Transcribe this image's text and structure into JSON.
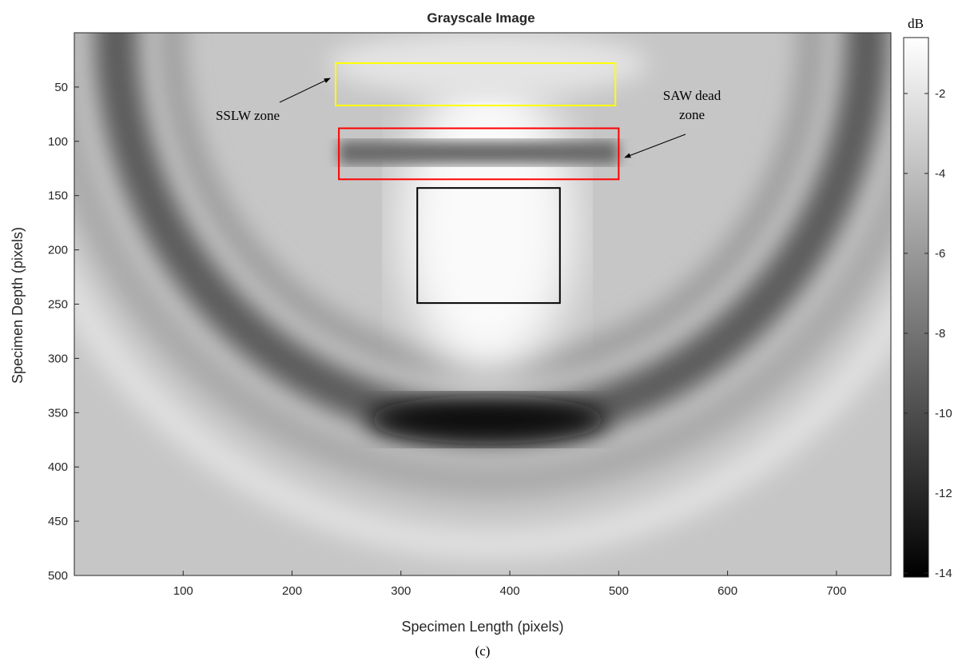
{
  "chart_data": {
    "type": "image",
    "title": "Grayscale Image",
    "x_label": "Specimen Length (pixels)",
    "y_label": "Specimen Depth (pixels)",
    "caption": "(c)",
    "xlim": [
      0,
      750
    ],
    "xticks": [
      100,
      200,
      300,
      400,
      500,
      600,
      700
    ],
    "ylim": [
      0,
      500
    ],
    "yticks": [
      50,
      100,
      150,
      200,
      250,
      300,
      350,
      400,
      450,
      500
    ],
    "colorbar": {
      "label": "dB",
      "lim": [
        -14.1,
        -0.6
      ],
      "ticks": [
        -2,
        -4,
        -6,
        -8,
        -10,
        -12,
        -14
      ]
    },
    "boxes": [
      {
        "color": "#ffff00",
        "x": [
          240,
          497
        ],
        "y": [
          28,
          67
        ]
      },
      {
        "color": "#ff0000",
        "x": [
          243,
          500
        ],
        "y": [
          88,
          135
        ]
      },
      {
        "color": "#000000",
        "x": [
          315,
          446
        ],
        "y": [
          143,
          249
        ]
      }
    ],
    "annotations": [
      {
        "text": [
          "SSLW zone"
        ]
      },
      {
        "text": [
          "SAW dead",
          "zone"
        ]
      }
    ]
  }
}
